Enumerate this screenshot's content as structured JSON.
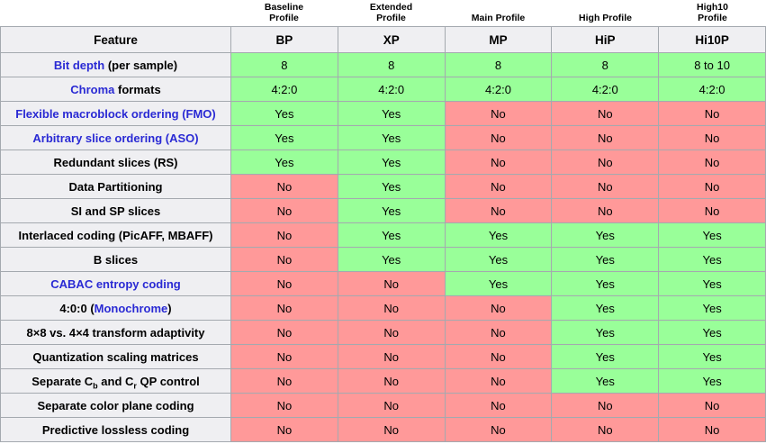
{
  "colors": {
    "yes_bg": "#99ff99",
    "no_bg": "#ff9999",
    "header_bg": "#efeff2",
    "border": "#a4a9af",
    "link": "#2a2ad4",
    "text": "#000000",
    "page_bg": "#ffffff"
  },
  "table": {
    "feature_header": "Feature",
    "profiles": [
      {
        "name": "Baseline Profile",
        "abbr": "BP"
      },
      {
        "name": "Extended Profile",
        "abbr": "XP"
      },
      {
        "name": "Main Profile",
        "abbr": "MP"
      },
      {
        "name": "High Profile",
        "abbr": "HiP"
      },
      {
        "name": "High10 Profile",
        "abbr": "Hi10P"
      }
    ],
    "rows": [
      {
        "label": [
          {
            "t": "Bit depth",
            "link": true
          },
          {
            "t": " (per sample)"
          }
        ],
        "cells": [
          {
            "t": "8",
            "ok": true
          },
          {
            "t": "8",
            "ok": true
          },
          {
            "t": "8",
            "ok": true
          },
          {
            "t": "8",
            "ok": true
          },
          {
            "t": "8 to 10",
            "ok": true
          }
        ]
      },
      {
        "label": [
          {
            "t": "Chroma",
            "link": true
          },
          {
            "t": " formats"
          }
        ],
        "cells": [
          {
            "t": "4:2:0",
            "ok": true
          },
          {
            "t": "4:2:0",
            "ok": true
          },
          {
            "t": "4:2:0",
            "ok": true
          },
          {
            "t": "4:2:0",
            "ok": true
          },
          {
            "t": "4:2:0",
            "ok": true
          }
        ]
      },
      {
        "label": [
          {
            "t": "Flexible macroblock ordering (FMO)",
            "link": true
          }
        ],
        "cells": [
          {
            "t": "Yes",
            "ok": true
          },
          {
            "t": "Yes",
            "ok": true
          },
          {
            "t": "No",
            "ok": false
          },
          {
            "t": "No",
            "ok": false
          },
          {
            "t": "No",
            "ok": false
          }
        ]
      },
      {
        "label": [
          {
            "t": "Arbitrary slice ordering (ASO)",
            "link": true
          }
        ],
        "cells": [
          {
            "t": "Yes",
            "ok": true
          },
          {
            "t": "Yes",
            "ok": true
          },
          {
            "t": "No",
            "ok": false
          },
          {
            "t": "No",
            "ok": false
          },
          {
            "t": "No",
            "ok": false
          }
        ]
      },
      {
        "label": [
          {
            "t": "Redundant slices (RS)"
          }
        ],
        "cells": [
          {
            "t": "Yes",
            "ok": true
          },
          {
            "t": "Yes",
            "ok": true
          },
          {
            "t": "No",
            "ok": false
          },
          {
            "t": "No",
            "ok": false
          },
          {
            "t": "No",
            "ok": false
          }
        ]
      },
      {
        "label": [
          {
            "t": "Data Partitioning"
          }
        ],
        "cells": [
          {
            "t": "No",
            "ok": false
          },
          {
            "t": "Yes",
            "ok": true
          },
          {
            "t": "No",
            "ok": false
          },
          {
            "t": "No",
            "ok": false
          },
          {
            "t": "No",
            "ok": false
          }
        ]
      },
      {
        "label": [
          {
            "t": "SI and SP slices"
          }
        ],
        "cells": [
          {
            "t": "No",
            "ok": false
          },
          {
            "t": "Yes",
            "ok": true
          },
          {
            "t": "No",
            "ok": false
          },
          {
            "t": "No",
            "ok": false
          },
          {
            "t": "No",
            "ok": false
          }
        ]
      },
      {
        "label": [
          {
            "t": "Interlaced coding (PicAFF, MBAFF)"
          }
        ],
        "cells": [
          {
            "t": "No",
            "ok": false
          },
          {
            "t": "Yes",
            "ok": true
          },
          {
            "t": "Yes",
            "ok": true
          },
          {
            "t": "Yes",
            "ok": true
          },
          {
            "t": "Yes",
            "ok": true
          }
        ]
      },
      {
        "label": [
          {
            "t": "B slices"
          }
        ],
        "cells": [
          {
            "t": "No",
            "ok": false
          },
          {
            "t": "Yes",
            "ok": true
          },
          {
            "t": "Yes",
            "ok": true
          },
          {
            "t": "Yes",
            "ok": true
          },
          {
            "t": "Yes",
            "ok": true
          }
        ]
      },
      {
        "label": [
          {
            "t": "CABAC entropy coding",
            "link": true
          }
        ],
        "cells": [
          {
            "t": "No",
            "ok": false
          },
          {
            "t": "No",
            "ok": false
          },
          {
            "t": "Yes",
            "ok": true
          },
          {
            "t": "Yes",
            "ok": true
          },
          {
            "t": "Yes",
            "ok": true
          }
        ]
      },
      {
        "label": [
          {
            "t": "4:0:0 ("
          },
          {
            "t": "Monochrome",
            "link": true
          },
          {
            "t": ")"
          }
        ],
        "cells": [
          {
            "t": "No",
            "ok": false
          },
          {
            "t": "No",
            "ok": false
          },
          {
            "t": "No",
            "ok": false
          },
          {
            "t": "Yes",
            "ok": true
          },
          {
            "t": "Yes",
            "ok": true
          }
        ]
      },
      {
        "label": [
          {
            "t": "8×8 vs. 4×4 transform adaptivity"
          }
        ],
        "cells": [
          {
            "t": "No",
            "ok": false
          },
          {
            "t": "No",
            "ok": false
          },
          {
            "t": "No",
            "ok": false
          },
          {
            "t": "Yes",
            "ok": true
          },
          {
            "t": "Yes",
            "ok": true
          }
        ]
      },
      {
        "label": [
          {
            "t": "Quantization scaling matrices"
          }
        ],
        "cells": [
          {
            "t": "No",
            "ok": false
          },
          {
            "t": "No",
            "ok": false
          },
          {
            "t": "No",
            "ok": false
          },
          {
            "t": "Yes",
            "ok": true
          },
          {
            "t": "Yes",
            "ok": true
          }
        ]
      },
      {
        "label": [
          {
            "t": "Separate C"
          },
          {
            "t": "b",
            "sub": true
          },
          {
            "t": " and C"
          },
          {
            "t": "r",
            "sub": true
          },
          {
            "t": " QP control"
          }
        ],
        "cells": [
          {
            "t": "No",
            "ok": false
          },
          {
            "t": "No",
            "ok": false
          },
          {
            "t": "No",
            "ok": false
          },
          {
            "t": "Yes",
            "ok": true
          },
          {
            "t": "Yes",
            "ok": true
          }
        ]
      },
      {
        "label": [
          {
            "t": "Separate color plane coding"
          }
        ],
        "cells": [
          {
            "t": "No",
            "ok": false
          },
          {
            "t": "No",
            "ok": false
          },
          {
            "t": "No",
            "ok": false
          },
          {
            "t": "No",
            "ok": false
          },
          {
            "t": "No",
            "ok": false
          }
        ]
      },
      {
        "label": [
          {
            "t": "Predictive lossless coding"
          }
        ],
        "cells": [
          {
            "t": "No",
            "ok": false
          },
          {
            "t": "No",
            "ok": false
          },
          {
            "t": "No",
            "ok": false
          },
          {
            "t": "No",
            "ok": false
          },
          {
            "t": "No",
            "ok": false
          }
        ]
      }
    ]
  }
}
